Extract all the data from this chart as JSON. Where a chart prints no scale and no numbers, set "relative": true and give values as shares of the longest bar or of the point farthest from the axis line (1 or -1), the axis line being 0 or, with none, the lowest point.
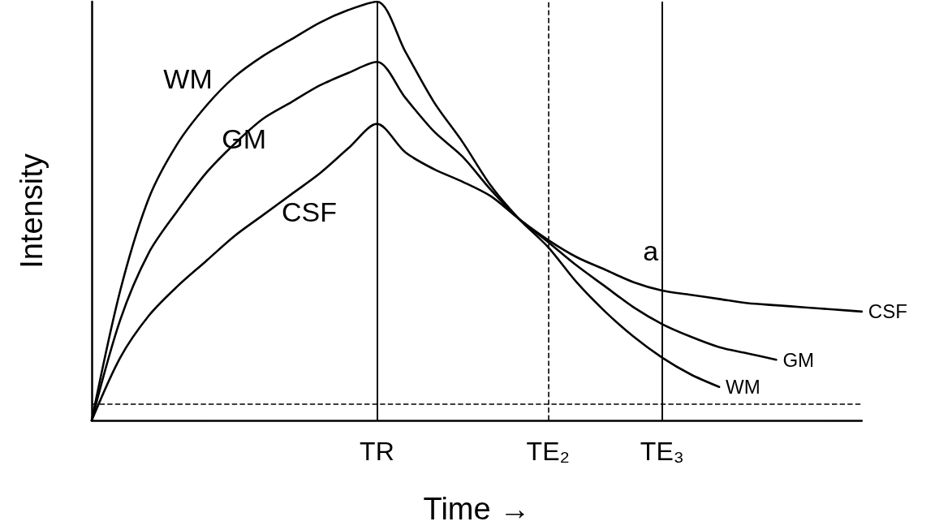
{
  "chart_data": {
    "type": "line",
    "relative": true,
    "xlabel": "Time →",
    "ylabel": "Intensity",
    "categories": [
      null,
      null,
      null,
      null,
      null,
      null,
      null,
      null,
      null,
      null,
      "TR",
      null,
      null,
      null,
      null,
      null,
      "TE₂",
      null,
      null,
      null,
      "TE₃",
      null,
      null,
      null,
      null,
      null,
      null,
      null
    ],
    "grid": false,
    "legend": false,
    "marker": "none",
    "line_style": "solid",
    "series": [
      {
        "name": "WM",
        "color": "#000000",
        "values": [
          0,
          0.31,
          0.53,
          0.66,
          0.75,
          0.82,
          0.87,
          0.91,
          0.95,
          0.98,
          1.0,
          0.88,
          0.76,
          0.665,
          0.56,
          0.48,
          0.414,
          0.33,
          0.26,
          0.2,
          0.15,
          0.11,
          0.08,
          null,
          null,
          null,
          null,
          null
        ]
      },
      {
        "name": "GM",
        "color": "#000000",
        "values": [
          0,
          0.24,
          0.4,
          0.5,
          0.59,
          0.66,
          0.72,
          0.76,
          0.8,
          0.83,
          0.856,
          0.77,
          0.69,
          0.63,
          0.55,
          0.48,
          0.426,
          0.37,
          0.32,
          0.27,
          0.23,
          0.2,
          0.175,
          0.16,
          0.145,
          null,
          null,
          null
        ]
      },
      {
        "name": "CSF",
        "color": "#000000",
        "values": [
          0,
          0.15,
          0.25,
          0.32,
          0.38,
          0.44,
          0.49,
          0.54,
          0.59,
          0.65,
          0.708,
          0.64,
          0.6,
          0.57,
          0.535,
          0.48,
          0.431,
          0.39,
          0.36,
          0.33,
          0.31,
          0.3,
          0.29,
          0.28,
          0.275,
          0.27,
          0.265,
          0.26
        ]
      }
    ],
    "ref_lines": [
      {
        "axis": "x",
        "value": "TR",
        "color": "#000000",
        "line_style": "solid"
      },
      {
        "axis": "x",
        "value": "TE₂",
        "color": "#000000",
        "line_style": "dashed"
      },
      {
        "axis": "x",
        "value": "TE₃",
        "color": "#000000",
        "line_style": "solid"
      },
      {
        "axis": "y",
        "value": 0.036,
        "color": "#000000",
        "line_style": "dashed"
      }
    ],
    "annotations": [
      {
        "text": "a",
        "x": "TE₃",
        "y": 0.36
      }
    ]
  }
}
